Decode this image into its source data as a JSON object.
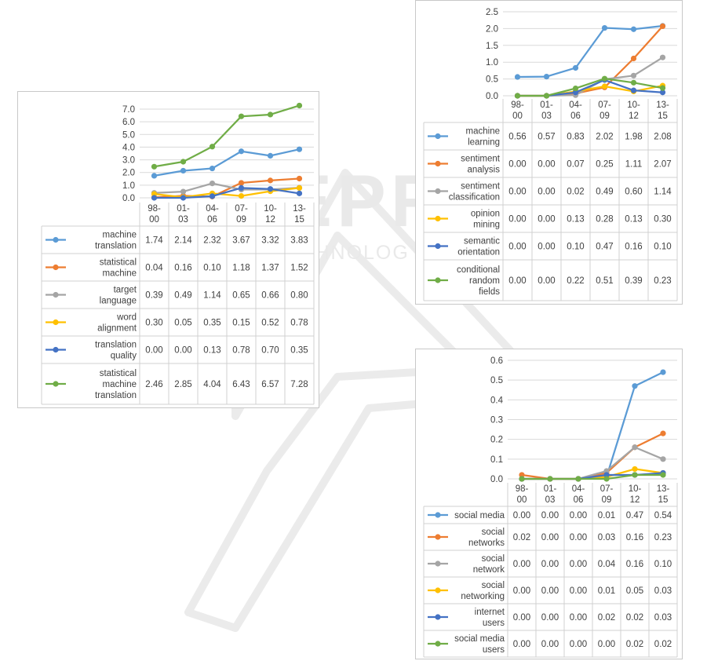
{
  "chart_data": [
    {
      "type": "line",
      "categories": [
        "98-00",
        "01-03",
        "04-06",
        "07-09",
        "10-12",
        "13-15"
      ],
      "ylim": [
        0,
        7
      ],
      "yticks": [
        "0.0",
        "1.0",
        "2.0",
        "3.0",
        "4.0",
        "5.0",
        "6.0",
        "7.0"
      ],
      "tick_step": 1,
      "legend": "data-table",
      "series": [
        {
          "name": "machine translation",
          "lines": [
            "machine",
            "translation"
          ],
          "color": "#5b9bd5",
          "values": [
            1.74,
            2.14,
            2.32,
            3.67,
            3.32,
            3.83
          ],
          "labels": [
            "1.74",
            "2.14",
            "2.32",
            "3.67",
            "3.32",
            "3.83"
          ]
        },
        {
          "name": "statistical machine",
          "lines": [
            "statistical",
            "machine"
          ],
          "color": "#ed7d31",
          "values": [
            0.04,
            0.16,
            0.1,
            1.18,
            1.37,
            1.52
          ],
          "labels": [
            "0.04",
            "0.16",
            "0.10",
            "1.18",
            "1.37",
            "1.52"
          ]
        },
        {
          "name": "target language",
          "lines": [
            "target",
            "language"
          ],
          "color": "#a5a5a5",
          "values": [
            0.39,
            0.49,
            1.14,
            0.65,
            0.66,
            0.8
          ],
          "labels": [
            "0.39",
            "0.49",
            "1.14",
            "0.65",
            "0.66",
            "0.80"
          ]
        },
        {
          "name": "word alignment",
          "lines": [
            "word",
            "alignment"
          ],
          "color": "#ffc000",
          "values": [
            0.3,
            0.05,
            0.35,
            0.15,
            0.52,
            0.78
          ],
          "labels": [
            "0.30",
            "0.05",
            "0.35",
            "0.15",
            "0.52",
            "0.78"
          ]
        },
        {
          "name": "translation quality",
          "lines": [
            "translation",
            "quality"
          ],
          "color": "#4472c4",
          "values": [
            0.0,
            0.0,
            0.13,
            0.78,
            0.7,
            0.35
          ],
          "labels": [
            "0.00",
            "0.00",
            "0.13",
            "0.78",
            "0.70",
            "0.35"
          ]
        },
        {
          "name": "statistical machine translation",
          "lines": [
            "statistical",
            "machine",
            "translation"
          ],
          "color": "#70ad47",
          "values": [
            2.46,
            2.85,
            4.04,
            6.43,
            6.57,
            7.28
          ],
          "labels": [
            "2.46",
            "2.85",
            "4.04",
            "6.43",
            "6.57",
            "7.28"
          ]
        }
      ]
    },
    {
      "type": "line",
      "categories": [
        "98-00",
        "01-03",
        "04-06",
        "07-09",
        "10-12",
        "13-15"
      ],
      "ylim": [
        0,
        2.5
      ],
      "yticks": [
        "0.0",
        "0.5",
        "1.0",
        "1.5",
        "2.0",
        "2.5"
      ],
      "tick_step": 0.5,
      "legend": "data-table",
      "series": [
        {
          "name": "machine learning",
          "lines": [
            "machine",
            "learning"
          ],
          "color": "#5b9bd5",
          "values": [
            0.56,
            0.57,
            0.83,
            2.02,
            1.98,
            2.08
          ],
          "labels": [
            "0.56",
            "0.57",
            "0.83",
            "2.02",
            "1.98",
            "2.08"
          ]
        },
        {
          "name": "sentiment analysis",
          "lines": [
            "sentiment",
            "analysis"
          ],
          "color": "#ed7d31",
          "values": [
            0.0,
            0.0,
            0.07,
            0.25,
            1.11,
            2.07
          ],
          "labels": [
            "0.00",
            "0.00",
            "0.07",
            "0.25",
            "1.11",
            "2.07"
          ]
        },
        {
          "name": "sentiment classification",
          "lines": [
            "sentiment",
            "classification"
          ],
          "color": "#a5a5a5",
          "values": [
            0.0,
            0.0,
            0.02,
            0.49,
            0.6,
            1.14
          ],
          "labels": [
            "0.00",
            "0.00",
            "0.02",
            "0.49",
            "0.60",
            "1.14"
          ]
        },
        {
          "name": "opinion mining",
          "lines": [
            "opinion",
            "mining"
          ],
          "color": "#ffc000",
          "values": [
            0.0,
            0.0,
            0.13,
            0.28,
            0.13,
            0.3
          ],
          "labels": [
            "0.00",
            "0.00",
            "0.13",
            "0.28",
            "0.13",
            "0.30"
          ]
        },
        {
          "name": "semantic orientation",
          "lines": [
            "semantic",
            "orientation"
          ],
          "color": "#4472c4",
          "values": [
            0.0,
            0.0,
            0.1,
            0.47,
            0.16,
            0.1
          ],
          "labels": [
            "0.00",
            "0.00",
            "0.10",
            "0.47",
            "0.16",
            "0.10"
          ]
        },
        {
          "name": "conditional random fields",
          "lines": [
            "conditional",
            "random",
            "fields"
          ],
          "color": "#70ad47",
          "values": [
            0.0,
            0.0,
            0.22,
            0.51,
            0.39,
            0.23
          ],
          "labels": [
            "0.00",
            "0.00",
            "0.22",
            "0.51",
            "0.39",
            "0.23"
          ]
        }
      ]
    },
    {
      "type": "line",
      "categories": [
        "98-00",
        "01-03",
        "04-06",
        "07-09",
        "10-12",
        "13-15"
      ],
      "ylim": [
        0,
        0.6
      ],
      "yticks": [
        "0.0",
        "0.1",
        "0.2",
        "0.3",
        "0.4",
        "0.5",
        "0.6"
      ],
      "tick_step": 0.1,
      "legend": "data-table",
      "series": [
        {
          "name": "social media",
          "lines": [
            "social media"
          ],
          "color": "#5b9bd5",
          "values": [
            0.0,
            0.0,
            0.0,
            0.01,
            0.47,
            0.54
          ],
          "labels": [
            "0.00",
            "0.00",
            "0.00",
            "0.01",
            "0.47",
            "0.54"
          ]
        },
        {
          "name": "social networks",
          "lines": [
            "social",
            "networks"
          ],
          "color": "#ed7d31",
          "values": [
            0.02,
            0.0,
            0.0,
            0.03,
            0.16,
            0.23
          ],
          "labels": [
            "0.02",
            "0.00",
            "0.00",
            "0.03",
            "0.16",
            "0.23"
          ]
        },
        {
          "name": "social network",
          "lines": [
            "social",
            "network"
          ],
          "color": "#a5a5a5",
          "values": [
            0.0,
            0.0,
            0.0,
            0.04,
            0.16,
            0.1
          ],
          "labels": [
            "0.00",
            "0.00",
            "0.00",
            "0.04",
            "0.16",
            "0.10"
          ]
        },
        {
          "name": "social networking",
          "lines": [
            "social",
            "networking"
          ],
          "color": "#ffc000",
          "values": [
            0.0,
            0.0,
            0.0,
            0.01,
            0.05,
            0.03
          ],
          "labels": [
            "0.00",
            "0.00",
            "0.00",
            "0.01",
            "0.05",
            "0.03"
          ]
        },
        {
          "name": "internet users",
          "lines": [
            "internet",
            "users"
          ],
          "color": "#4472c4",
          "values": [
            0.0,
            0.0,
            0.0,
            0.02,
            0.02,
            0.03
          ],
          "labels": [
            "0.00",
            "0.00",
            "0.00",
            "0.02",
            "0.02",
            "0.03"
          ]
        },
        {
          "name": "social media users",
          "lines": [
            "social media",
            "users"
          ],
          "color": "#70ad47",
          "values": [
            0.0,
            0.0,
            0.0,
            0.0,
            0.02,
            0.02
          ],
          "labels": [
            "0.00",
            "0.00",
            "0.00",
            "0.00",
            "0.02",
            "0.02"
          ]
        }
      ]
    }
  ],
  "watermark": {
    "line1": "SCITEPRESS",
    "line2": "SCIENCE AND TECHNOLOGY PUBLICATIONS",
    "color": "#e6e6e6"
  }
}
